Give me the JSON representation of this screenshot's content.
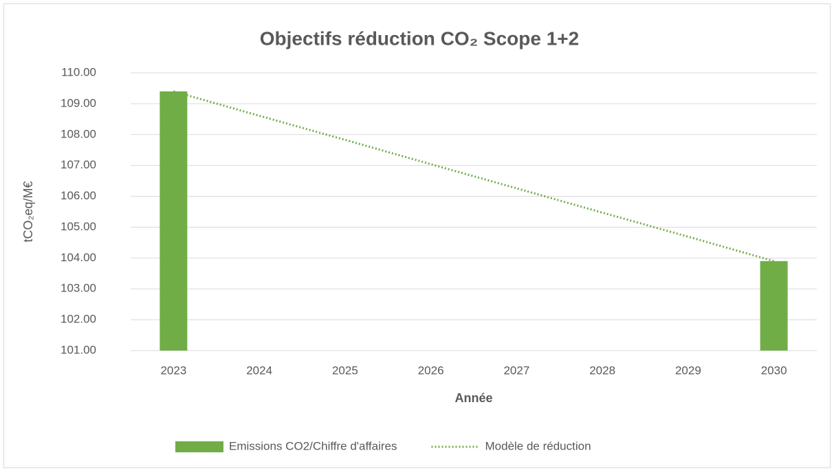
{
  "chart_data": {
    "type": "bar",
    "title": "Objectifs réduction CO₂ Scope 1+2",
    "x_label": "Année",
    "y_label": "tCO₂eq/M€",
    "categories": [
      "2023",
      "2024",
      "2025",
      "2026",
      "2027",
      "2028",
      "2029",
      "2030"
    ],
    "series": [
      {
        "name": "Emissions CO2/Chiffre d'affaires",
        "type": "bar",
        "color": "#70ad47",
        "values": [
          109.4,
          null,
          null,
          null,
          null,
          null,
          null,
          103.9
        ]
      },
      {
        "name": "Modèle de réduction",
        "type": "line",
        "style": "dotted",
        "color": "#70ad47",
        "values": [
          109.4,
          108.61,
          107.83,
          107.04,
          106.26,
          105.47,
          104.69,
          103.9
        ]
      }
    ],
    "ylim": [
      101,
      110
    ],
    "yticks": [
      {
        "value": 101,
        "label": "101.00"
      },
      {
        "value": 102,
        "label": "102.00"
      },
      {
        "value": 103,
        "label": "103.00"
      },
      {
        "value": 104,
        "label": "104.00"
      },
      {
        "value": 105,
        "label": "105.00"
      },
      {
        "value": 106,
        "label": "106.00"
      },
      {
        "value": 107,
        "label": "107.00"
      },
      {
        "value": 108,
        "label": "108.00"
      },
      {
        "value": 109,
        "label": "109.00"
      },
      {
        "value": 110,
        "label": "110.00"
      }
    ],
    "grid": true,
    "legend": "bottom"
  }
}
